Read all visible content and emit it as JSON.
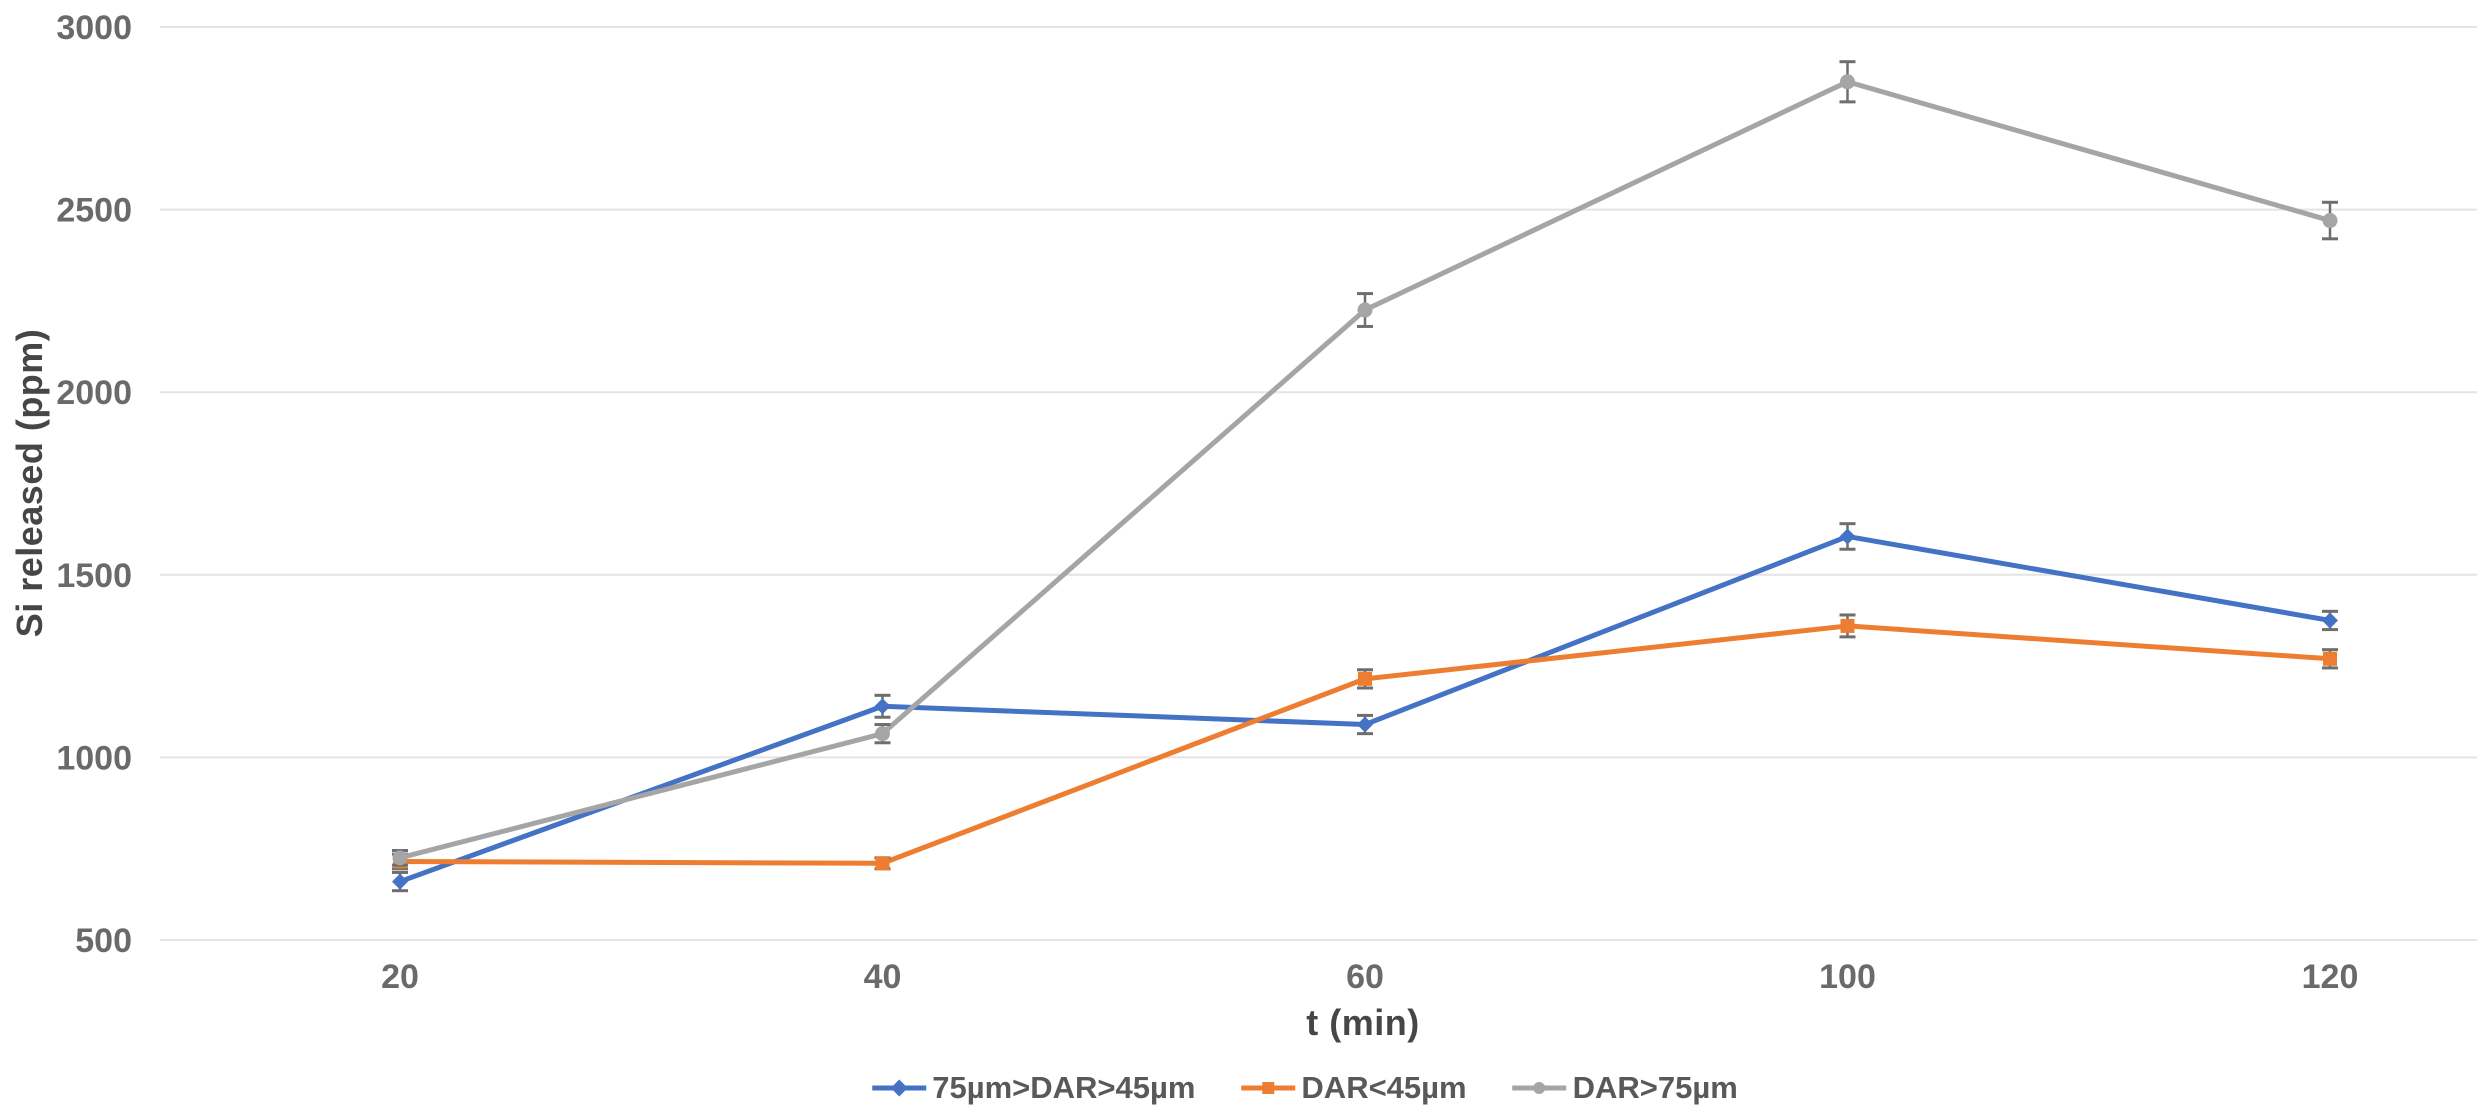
{
  "chart_data": {
    "type": "line",
    "title": "",
    "xlabel": "t (min)",
    "ylabel": "Si released (ppm)",
    "categories": [
      "20",
      "40",
      "60",
      "100",
      "120"
    ],
    "yticks": [
      500,
      1000,
      1500,
      2000,
      2500,
      3000
    ],
    "ylim": [
      500,
      3000
    ],
    "grid": "horizontal-only",
    "legend_position": "bottom",
    "gridline_color": "#E4E4E4",
    "axis_text_color": "#6A6A6A",
    "error_bar_color": "#6E6E6E",
    "series": [
      {
        "name": "75µm>DAR>45µm",
        "color": "#4472C4",
        "marker": "diamond",
        "values": [
          660,
          1140,
          1090,
          1605,
          1375
        ],
        "error": [
          25,
          30,
          25,
          35,
          25
        ]
      },
      {
        "name": "DAR<45µm",
        "color": "#ED7D31",
        "marker": "square",
        "values": [
          715,
          710,
          1215,
          1360,
          1270
        ],
        "error": [
          20,
          15,
          25,
          30,
          25
        ]
      },
      {
        "name": "DAR>75µm",
        "color": "#A5A5A5",
        "marker": "circle",
        "values": [
          725,
          1065,
          2225,
          2850,
          2470
        ],
        "error": [
          20,
          25,
          45,
          55,
          50
        ]
      }
    ]
  }
}
